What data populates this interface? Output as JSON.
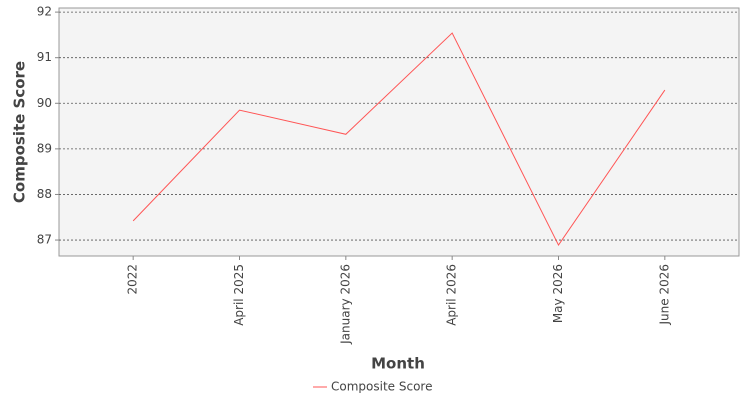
{
  "chart_data": {
    "type": "line",
    "x_label": "Month",
    "y_label": "Composite Score",
    "categories": [
      "2022",
      "April 2025",
      "January 2026",
      "April 2026",
      "May 2026",
      "June 2026"
    ],
    "series": [
      {
        "name": "Composite Score",
        "color": "#ff5555",
        "values": [
          87.42,
          89.85,
          89.32,
          91.54,
          86.89,
          90.29
        ]
      }
    ],
    "ylim": [
      86.65,
      92.09
    ],
    "yticks": [
      87,
      88,
      89,
      90,
      91,
      92
    ],
    "grid": true,
    "legend": "bottom"
  }
}
